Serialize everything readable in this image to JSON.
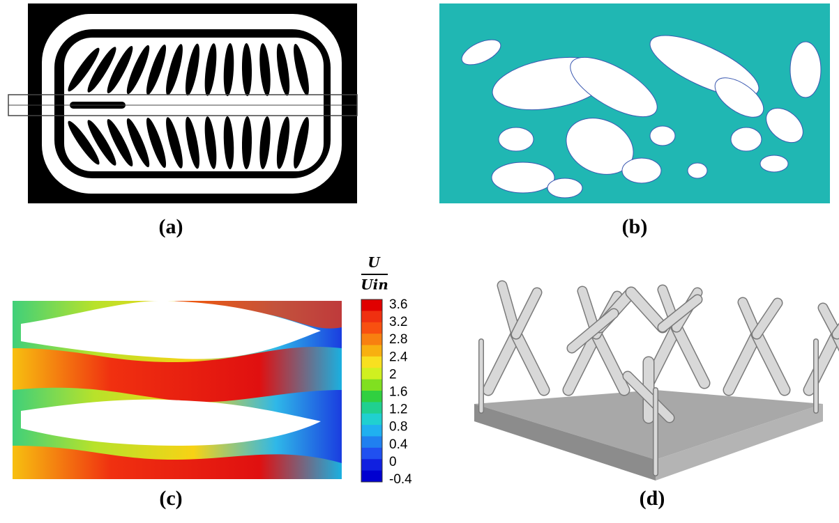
{
  "labels": {
    "a": "(a)",
    "b": "(b)",
    "c": "(c)",
    "d": "(d)"
  },
  "colorbar": {
    "numerator": "U",
    "denominator": "Uin",
    "ticks": [
      "3.6",
      "3.2",
      "2.8",
      "2.4",
      "2",
      "1.6",
      "1.2",
      "0.8",
      "0.4",
      "0",
      "-0.4"
    ]
  }
}
